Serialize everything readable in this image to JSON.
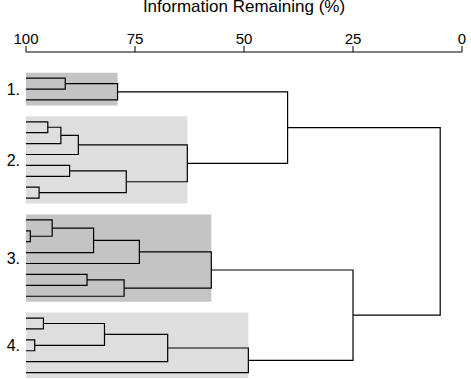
{
  "chart_data": {
    "type": "dendrogram",
    "x_label": "Information Remaining (%)",
    "xlim": [
      100,
      0
    ],
    "xticks": [
      100,
      75,
      50,
      25,
      0
    ],
    "tree": {
      "height": 5,
      "children": [
        {
          "height": 40,
          "children": [
            {
              "label": "1.",
              "color": "#c4c4c4",
              "height": 79,
              "children": [
                {
                  "height": 91,
                  "children": [
                    {
                      "height": 100
                    },
                    {
                      "height": 100
                    }
                  ]
                },
                {
                  "height": 100
                }
              ]
            },
            {
              "label": "2.",
              "color": "#dedede",
              "height": 63,
              "children": [
                {
                  "height": 88,
                  "children": [
                    {
                      "height": 92,
                      "children": [
                        {
                          "height": 95,
                          "children": [
                            {
                              "height": 100
                            },
                            {
                              "height": 100
                            }
                          ]
                        },
                        {
                          "height": 100
                        }
                      ]
                    },
                    {
                      "height": 100
                    }
                  ]
                },
                {
                  "height": 77,
                  "children": [
                    {
                      "height": 90,
                      "children": [
                        {
                          "height": 100
                        },
                        {
                          "height": 100
                        }
                      ]
                    },
                    {
                      "height": 97,
                      "children": [
                        {
                          "height": 100
                        },
                        {
                          "height": 100
                        }
                      ]
                    }
                  ]
                }
              ]
            }
          ]
        },
        {
          "height": 25,
          "children": [
            {
              "label": "3.",
              "color": "#c4c4c4",
              "height": 57.5,
              "children": [
                {
                  "height": 74,
                  "children": [
                    {
                      "height": 84.5,
                      "children": [
                        {
                          "height": 94,
                          "children": [
                            {
                              "height": 100
                            },
                            {
                              "height": 99,
                              "children": [
                                {
                                  "height": 100
                                },
                                {
                                  "height": 100
                                }
                              ]
                            }
                          ]
                        },
                        {
                          "height": 100
                        }
                      ]
                    },
                    {
                      "height": 100
                    }
                  ]
                },
                {
                  "height": 77.5,
                  "children": [
                    {
                      "height": 86,
                      "children": [
                        {
                          "height": 100
                        },
                        {
                          "height": 100
                        }
                      ]
                    },
                    {
                      "height": 100
                    }
                  ]
                }
              ]
            },
            {
              "label": "4.",
              "color": "#dedede",
              "height": 49,
              "children": [
                {
                  "height": 67.5,
                  "children": [
                    {
                      "height": 82,
                      "children": [
                        {
                          "height": 96,
                          "children": [
                            {
                              "height": 100
                            },
                            {
                              "height": 100
                            }
                          ]
                        },
                        {
                          "height": 98,
                          "children": [
                            {
                              "height": 100
                            },
                            {
                              "height": 100
                            }
                          ]
                        }
                      ]
                    },
                    {
                      "height": 100
                    }
                  ]
                },
                {
                  "height": 100
                }
              ]
            }
          ]
        }
      ]
    }
  }
}
